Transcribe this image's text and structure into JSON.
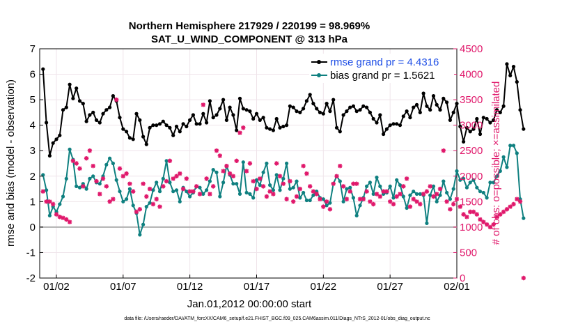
{
  "colors": {
    "rmse": "#000000",
    "bias": "#0f8080",
    "obs": "#e0186b",
    "legend_rmse_text": "#1f4fe6",
    "zero_line": "#b0b0b0",
    "grid": "#efe4ea"
  },
  "chart_data": {
    "type": "line",
    "title": "Northern Hemisphere 217929 / 220199 = 98.969%",
    "subtitle": "SAT_U_WIND_COMPONENT @ 313 hPa",
    "xlabel": "Jan.01,2012 00:00:00 start",
    "ylabel_left": "rmse and bias (model - observation)",
    "ylabel_right": "# of obs: o=possible; ×=assimilated",
    "footer": "data file: /Users/raeder/DAI/ATM_forcXX/CAM6_setup/f.e21.FHIST_BGC.f09_025.CAM6assim.011/Diags_NTrS_2012-01/obs_diag_output.nc",
    "x_range": [
      0.75,
      32.0
    ],
    "ylim_left": [
      -2,
      7
    ],
    "ylim_right": [
      0,
      4500
    ],
    "left_ticks": [
      "-2",
      "-1",
      "0",
      "1",
      "2",
      "3",
      "4",
      "5",
      "6",
      "7"
    ],
    "right_ticks": [
      "0",
      "500",
      "1000",
      "1500",
      "2000",
      "2500",
      "3000",
      "3500",
      "4000",
      "4500"
    ],
    "x_ticks": [
      {
        "label": "01/02",
        "day": 2
      },
      {
        "label": "01/07",
        "day": 7
      },
      {
        "label": "01/12",
        "day": 12
      },
      {
        "label": "01/17",
        "day": 17
      },
      {
        "label": "01/22",
        "day": 22
      },
      {
        "label": "01/27",
        "day": 27
      },
      {
        "label": "02/01",
        "day": 32
      }
    ],
    "grid": true,
    "legend_position": "top-right",
    "series": [
      {
        "name": "rmse grand pr = 4.4316",
        "axis": "left",
        "marker": "circle",
        "x_start": 1.0,
        "x_step": 0.25,
        "values": [
          6.2,
          4.1,
          2.8,
          3.3,
          3.45,
          3.6,
          4.6,
          4.7,
          5.6,
          5.05,
          5.45,
          4.95,
          4.85,
          4.15,
          4.4,
          4.5,
          4.2,
          4.1,
          4.45,
          4.6,
          4.7,
          5.15,
          4.95,
          4.3,
          3.85,
          3.75,
          3.5,
          3.45,
          4.45,
          4.2,
          3.55,
          3.25,
          3.9,
          4.0,
          4.0,
          4.05,
          4.15,
          4.0,
          3.9,
          3.6,
          3.95,
          3.75,
          4.05,
          3.95,
          4.2,
          4.4,
          4.05,
          4.05,
          4.45,
          4.1,
          4.95,
          4.3,
          4.4,
          4.65,
          5.0,
          4.2,
          4.7,
          4.4,
          3.8,
          5.05,
          4.65,
          4.6,
          4.55,
          4.25,
          4.45,
          4.2,
          4.3,
          3.9,
          3.85,
          3.8,
          4.25,
          3.9,
          3.95,
          4.0,
          4.75,
          4.7,
          4.55,
          4.5,
          4.65,
          4.95,
          5.2,
          4.85,
          4.65,
          4.5,
          4.45,
          4.85,
          4.55,
          5.0,
          3.9,
          3.75,
          4.4,
          4.55,
          4.7,
          4.75,
          4.55,
          4.6,
          4.75,
          4.7,
          4.5,
          4.25,
          4.1,
          4.4,
          3.65,
          3.85,
          4.0,
          4.05,
          4.05,
          4.0,
          4.35,
          4.55,
          4.3,
          4.7,
          4.8,
          4.5,
          5.25,
          4.75,
          4.6,
          5.15,
          4.8,
          4.6,
          5.05,
          4.9,
          4.2,
          4.5,
          4.85,
          3.95,
          3.35,
          3.9,
          3.75,
          3.85,
          4.25,
          3.65,
          4.3,
          4.25,
          4.1,
          4.2,
          4.6,
          4.5,
          4.75,
          6.4,
          5.95,
          6.3,
          5.7,
          4.6,
          3.85
        ]
      },
      {
        "name": "bias grand pr = 1.5621",
        "axis": "left",
        "marker": "circle",
        "x_start": 1.0,
        "x_step": 0.25,
        "values": [
          2.05,
          1.45,
          0.45,
          0.8,
          0.6,
          0.9,
          1.2,
          1.9,
          3.05,
          2.65,
          1.6,
          1.55,
          1.7,
          1.5,
          1.9,
          2.0,
          1.75,
          1.7,
          2.0,
          2.45,
          2.7,
          2.5,
          1.85,
          1.4,
          1.0,
          1.1,
          1.5,
          0.85,
          0.55,
          -0.3,
          0.1,
          0.8,
          0.95,
          1.45,
          1.75,
          1.4,
          1.9,
          2.6,
          1.75,
          1.4,
          1.45,
          1.0,
          1.55,
          1.4,
          1.2,
          1.35,
          1.6,
          1.55,
          1.3,
          1.45,
          1.8,
          2.25,
          2.15,
          1.2,
          1.75,
          2.4,
          2.05,
          1.7,
          1.7,
          1.3,
          2.55,
          1.35,
          1.3,
          1.15,
          1.85,
          1.65,
          2.15,
          2.5,
          1.65,
          1.45,
          2.05,
          1.45,
          1.9,
          2.5,
          1.5,
          1.55,
          1.8,
          1.15,
          1.35,
          1.05,
          1.05,
          1.25,
          1.4,
          1.15,
          1.1,
          0.85,
          0.95,
          1.7,
          2.0,
          1.8,
          1.0,
          1.5,
          1.55,
          1.15,
          0.45,
          0.85,
          1.15,
          1.6,
          1.75,
          1.3,
          1.95,
          1.6,
          1.3,
          1.35,
          1.6,
          1.15,
          1.85,
          1.65,
          1.2,
          0.75,
          1.25,
          1.4,
          1.3,
          1.3,
          1.25,
          0.15,
          1.25,
          1.6,
          1.0,
          1.25,
          1.8,
          1.35,
          1.1,
          1.5,
          2.2,
          1.85,
          1.9,
          1.55,
          1.75,
          1.85,
          1.55,
          1.4,
          1.35,
          1.15,
          1.75,
          1.75,
          2.0,
          2.2,
          2.75,
          2.35,
          3.2,
          3.2,
          2.9,
          1.1,
          0.35
        ]
      },
      {
        "name": "# of obs: o=possible; ×=assimilated",
        "axis": "right",
        "marker": "star",
        "x_start": 1.0,
        "x_step": 0.25,
        "values": [
          1700,
          1500,
          1500,
          1450,
          1250,
          1200,
          1180,
          1150,
          1100,
          2300,
          2250,
          2150,
          1800,
          2350,
          2500,
          2200,
          1900,
          1650,
          1950,
          1800,
          1500,
          1550,
          3500,
          2150,
          2000,
          2050,
          1850,
          1700,
          1300,
          1350,
          1850,
          1600,
          1750,
          1450,
          1550,
          1400,
          1800,
          1900,
          2300,
          1950,
          2000,
          2050,
          1750,
          1950,
          1700,
          1700,
          1800,
          1650,
          3400,
          1950,
          1650,
          1800,
          2500,
          2400,
          2100,
          2200,
          2050,
          2000,
          2300,
          2850,
          2950,
          2100,
          2250,
          1900,
          1750,
          1950,
          1800,
          1600,
          1700,
          1650,
          2250,
          2000,
          1850,
          1550,
          1900,
          1500,
          1600,
          1750,
          2200,
          2050,
          1800,
          1700,
          1650,
          1550,
          1400,
          1500,
          1350,
          1850,
          2000,
          2200,
          1800,
          1550,
          1700,
          1850,
          1850,
          1550,
          1550,
          1700,
          1500,
          1450,
          1650,
          1600,
          1700,
          1700,
          1500,
          1450,
          1600,
          1650,
          1800,
          1950,
          1400,
          1550,
          1500,
          1450,
          1650,
          1700,
          1800,
          1600,
          1650,
          1750,
          2500,
          1500,
          1350,
          1450,
          1550,
          1400,
          1250,
          1200,
          1300,
          1300,
          1250,
          1150,
          1100,
          1050,
          1000,
          1050,
          1200,
          1250,
          1300,
          1350,
          1400,
          1450,
          1550,
          1500,
          0
        ]
      }
    ]
  }
}
